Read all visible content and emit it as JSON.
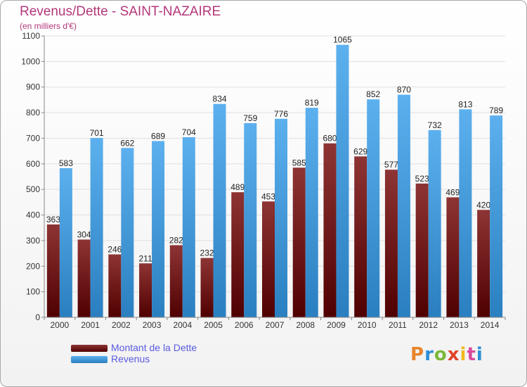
{
  "title": "Revenus/Dette - SAINT-NAZAIRE",
  "subtitle": "(en milliers d'€)",
  "logo": {
    "text": "Proxiti"
  },
  "chart_data": {
    "type": "bar",
    "title": "Revenus/Dette - SAINT-NAZAIRE",
    "ylabel": "(en milliers d'€)",
    "xlabel": "",
    "ylim": [
      0,
      1100
    ],
    "yticks": [
      0,
      100,
      200,
      300,
      400,
      500,
      600,
      700,
      800,
      900,
      1000,
      1100
    ],
    "grid": true,
    "legend_position": "bottom-left",
    "categories": [
      "2000",
      "2001",
      "2002",
      "2003",
      "2004",
      "2005",
      "2006",
      "2007",
      "2008",
      "2009",
      "2010",
      "2011",
      "2012",
      "2013",
      "2014"
    ],
    "series": [
      {
        "name": "Montant de la Dette",
        "color": "#7a1717",
        "values": [
          363,
          304,
          246,
          211,
          282,
          232,
          489,
          453,
          585,
          680,
          629,
          577,
          523,
          469,
          420
        ]
      },
      {
        "name": "Revenus",
        "color": "#3f9ce2",
        "values": [
          583,
          701,
          662,
          689,
          704,
          834,
          759,
          776,
          819,
          1065,
          852,
          870,
          732,
          813,
          789
        ]
      }
    ]
  }
}
